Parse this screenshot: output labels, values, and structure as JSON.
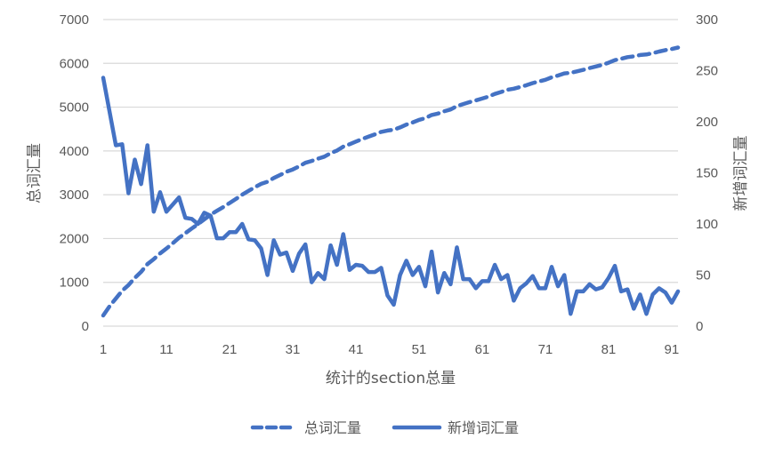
{
  "chart_data": {
    "type": "line",
    "title": "",
    "xlabel": "统计的section总量",
    "ylabel_left": "总词汇量",
    "ylabel_right": "新增词汇量",
    "ylim_left": [
      0,
      7000
    ],
    "ylim_right": [
      0,
      300
    ],
    "yticks_left": [
      0,
      1000,
      2000,
      3000,
      4000,
      5000,
      6000,
      7000
    ],
    "yticks_right": [
      0,
      50,
      100,
      150,
      200,
      250,
      300
    ],
    "xticks": [
      1,
      11,
      21,
      31,
      41,
      51,
      61,
      71,
      81,
      91
    ],
    "x_range": [
      1,
      92
    ],
    "grid": true,
    "legend_position": "bottom",
    "color": "#4472C4",
    "series": [
      {
        "name": "总词汇量",
        "axis": "left",
        "style": "dashed",
        "values": [
          243,
          453,
          630,
          808,
          938,
          1101,
          1240,
          1417,
          1529,
          1660,
          1772,
          1891,
          2017,
          2123,
          2228,
          2328,
          2439,
          2547,
          2633,
          2719,
          2811,
          2903,
          3003,
          3088,
          3172,
          3248,
          3298,
          3382,
          3452,
          3524,
          3578,
          3649,
          3729,
          3772,
          3824,
          3870,
          3949,
          4009,
          4099,
          4154,
          4214,
          4273,
          4326,
          4379,
          4436,
          4466,
          4487,
          4537,
          4601,
          4651,
          4709,
          4748,
          4821,
          4854,
          4906,
          4947,
          5024,
          5070,
          5116,
          5153,
          5197,
          5241,
          5301,
          5347,
          5397,
          5422,
          5459,
          5501,
          5550,
          5587,
          5624,
          5682,
          5721,
          5771,
          5783,
          5817,
          5851,
          5892,
          5928,
          5966,
          6013,
          6072,
          6106,
          6142,
          6159,
          6190,
          6202,
          6233,
          6270,
          6303,
          6326,
          6360
        ]
      },
      {
        "name": "新增词汇量",
        "axis": "right",
        "style": "solid",
        "values": [
          243,
          210,
          177,
          178,
          130,
          163,
          139,
          177,
          112,
          131,
          112,
          119,
          126,
          106,
          105,
          100,
          111,
          108,
          86,
          86,
          92,
          92,
          100,
          85,
          84,
          76,
          50,
          84,
          70,
          72,
          54,
          71,
          80,
          43,
          52,
          46,
          79,
          60,
          90,
          55,
          60,
          59,
          53,
          53,
          57,
          30,
          21,
          50,
          64,
          50,
          58,
          39,
          73,
          33,
          52,
          41,
          77,
          46,
          46,
          37,
          44,
          44,
          60,
          46,
          50,
          25,
          37,
          42,
          49,
          37,
          37,
          58,
          39,
          50,
          12,
          34,
          34,
          41,
          36,
          38,
          47,
          59,
          34,
          36,
          17,
          31,
          12,
          31,
          37,
          33,
          23,
          34
        ]
      }
    ]
  },
  "legend": {
    "items": [
      {
        "label": "总词汇量",
        "style": "dashed"
      },
      {
        "label": "新增词汇量",
        "style": "solid"
      }
    ]
  }
}
